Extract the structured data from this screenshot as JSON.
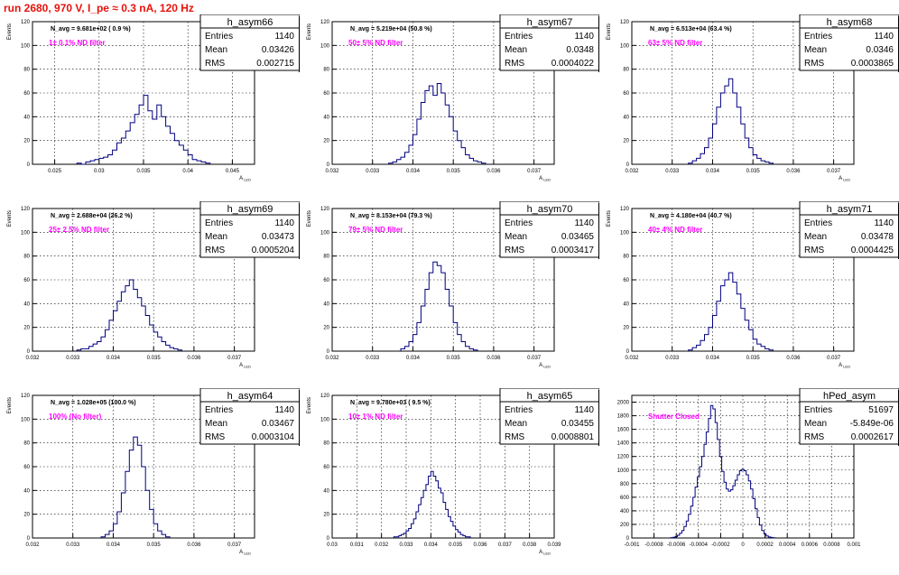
{
  "page": {
    "title": "run 2680,   970 V, I_pe ≈ 0.3 nA, 120 Hz"
  },
  "colors": {
    "title": "#e8120b",
    "annotation": "#ff00ff",
    "histogram": "#000080",
    "grid": "#000000"
  },
  "stats_labels": {
    "entries": "Entries",
    "mean": "Mean",
    "rms": "RMS"
  },
  "chart_data": [
    {
      "type": "histogram",
      "name": "h_asym66",
      "ylabel": "Events",
      "xlabel": "A_LED",
      "xlim": [
        0.0225,
        0.0475
      ],
      "ylim": [
        0,
        120
      ],
      "xticks": [
        "0.025",
        "0.03",
        "0.035",
        "0.04",
        "0.045"
      ],
      "yticks": [
        "0",
        "20",
        "40",
        "60",
        "80",
        "100",
        "120"
      ],
      "navg": "N_avg = 9.681e+02 ( 0.9 %)",
      "note": "1± 0.1% ND filter",
      "stats": {
        "entries": "1140",
        "mean": "0.03426",
        "rms": "0.002715"
      },
      "grid": true,
      "bins": {
        "start": 0.0275,
        "width": 0.0005,
        "counts": [
          1,
          0,
          2,
          3,
          4,
          5,
          6,
          8,
          12,
          18,
          22,
          28,
          35,
          42,
          50,
          58,
          45,
          38,
          50,
          40,
          32,
          26,
          20,
          16,
          12,
          8,
          4,
          3,
          2,
          1
        ]
      }
    },
    {
      "type": "histogram",
      "name": "h_asym67",
      "ylabel": "Events",
      "xlabel": "A_LED",
      "xlim": [
        0.032,
        0.0375
      ],
      "ylim": [
        0,
        120
      ],
      "xticks": [
        "0.032",
        "0.033",
        "0.034",
        "0.035",
        "0.036",
        "0.037"
      ],
      "yticks": [
        "0",
        "20",
        "40",
        "60",
        "80",
        "100",
        "120"
      ],
      "navg": "N_avg = 5.219e+04 (50.8 %)",
      "note": "50± 5% ND filter",
      "stats": {
        "entries": "1140",
        "mean": "0.0348",
        "rms": "0.0004022"
      },
      "grid": true,
      "bins": {
        "start": 0.0334,
        "width": 0.0001,
        "counts": [
          1,
          2,
          4,
          6,
          10,
          16,
          25,
          38,
          52,
          62,
          66,
          58,
          68,
          60,
          50,
          40,
          28,
          20,
          14,
          8,
          5,
          3,
          2,
          1
        ]
      }
    },
    {
      "type": "histogram",
      "name": "h_asym68",
      "ylabel": "Events",
      "xlabel": "A_LED",
      "xlim": [
        0.032,
        0.0375
      ],
      "ylim": [
        0,
        120
      ],
      "xticks": [
        "0.032",
        "0.033",
        "0.034",
        "0.035",
        "0.036",
        "0.037"
      ],
      "yticks": [
        "0",
        "20",
        "40",
        "60",
        "80",
        "100",
        "120"
      ],
      "navg": "N_avg = 6.513e+04 (63.4 %)",
      "note": "63± 5% ND filter",
      "stats": {
        "entries": "1140",
        "mean": "0.0346",
        "rms": "0.0003865"
      },
      "grid": true,
      "bins": {
        "start": 0.0334,
        "width": 0.0001,
        "counts": [
          1,
          3,
          5,
          9,
          14,
          22,
          34,
          48,
          60,
          66,
          72,
          60,
          48,
          34,
          22,
          14,
          8,
          5,
          3,
          2,
          1
        ]
      }
    },
    {
      "type": "histogram",
      "name": "h_asym69",
      "ylabel": "Events",
      "xlabel": "A_LED",
      "xlim": [
        0.032,
        0.0375
      ],
      "ylim": [
        0,
        120
      ],
      "xticks": [
        "0.032",
        "0.033",
        "0.034",
        "0.035",
        "0.036",
        "0.037"
      ],
      "yticks": [
        "0",
        "20",
        "40",
        "60",
        "80",
        "100",
        "120"
      ],
      "navg": "N_avg = 2.688e+04 (26.2 %)",
      "note": "25± 2.5% ND filter",
      "stats": {
        "entries": "1140",
        "mean": "0.03473",
        "rms": "0.0005204"
      },
      "grid": true,
      "bins": {
        "start": 0.0331,
        "width": 0.0001,
        "counts": [
          1,
          2,
          2,
          4,
          6,
          8,
          12,
          18,
          26,
          34,
          42,
          50,
          55,
          60,
          52,
          45,
          38,
          30,
          22,
          16,
          12,
          8,
          5,
          3,
          2,
          1
        ]
      }
    },
    {
      "type": "histogram",
      "name": "h_asym70",
      "ylabel": "Events",
      "xlabel": "A_LED",
      "xlim": [
        0.032,
        0.0375
      ],
      "ylim": [
        0,
        120
      ],
      "xticks": [
        "0.032",
        "0.033",
        "0.034",
        "0.035",
        "0.036",
        "0.037"
      ],
      "yticks": [
        "0",
        "20",
        "40",
        "60",
        "80",
        "100",
        "120"
      ],
      "navg": "N_avg = 8.153e+04 (79.3 %)",
      "note": "79± 5% ND filter",
      "stats": {
        "entries": "1140",
        "mean": "0.03465",
        "rms": "0.0003417"
      },
      "grid": true,
      "bins": {
        "start": 0.0337,
        "width": 0.0001,
        "counts": [
          2,
          4,
          8,
          14,
          24,
          38,
          52,
          66,
          75,
          72,
          66,
          52,
          38,
          24,
          14,
          8,
          4,
          2,
          1
        ]
      }
    },
    {
      "type": "histogram",
      "name": "h_asym71",
      "ylabel": "Events",
      "xlabel": "A_LED",
      "xlim": [
        0.032,
        0.0375
      ],
      "ylim": [
        0,
        120
      ],
      "xticks": [
        "0.032",
        "0.033",
        "0.034",
        "0.035",
        "0.036",
        "0.037"
      ],
      "yticks": [
        "0",
        "20",
        "40",
        "60",
        "80",
        "100",
        "120"
      ],
      "navg": "N_avg = 4.180e+04 (40.7 %)",
      "note": "40± 4% ND filter",
      "stats": {
        "entries": "1140",
        "mean": "0.03478",
        "rms": "0.0004425"
      },
      "grid": true,
      "bins": {
        "start": 0.0334,
        "width": 0.0001,
        "counts": [
          1,
          3,
          5,
          9,
          14,
          20,
          30,
          42,
          55,
          60,
          66,
          58,
          48,
          36,
          26,
          18,
          10,
          6,
          4,
          2,
          1
        ]
      }
    },
    {
      "type": "histogram",
      "name": "h_asym64",
      "ylabel": "Events",
      "xlabel": "A_LED",
      "xlim": [
        0.032,
        0.0375
      ],
      "ylim": [
        0,
        120
      ],
      "xticks": [
        "0.032",
        "0.033",
        "0.034",
        "0.035",
        "0.036",
        "0.037"
      ],
      "yticks": [
        "0",
        "20",
        "40",
        "60",
        "80",
        "100",
        "120"
      ],
      "navg": "N_avg = 1.028e+05 (100.0 %)",
      "note": "100% (No filter)",
      "stats": {
        "entries": "1140",
        "mean": "0.03467",
        "rms": "0.0003104"
      },
      "grid": true,
      "bins": {
        "start": 0.0337,
        "width": 0.0001,
        "counts": [
          1,
          3,
          6,
          12,
          22,
          38,
          56,
          74,
          85,
          78,
          60,
          40,
          24,
          12,
          6,
          3,
          1
        ]
      }
    },
    {
      "type": "histogram",
      "name": "h_asym65",
      "ylabel": "Events",
      "xlabel": "A_LED",
      "xlim": [
        0.03,
        0.039
      ],
      "ylim": [
        0,
        120
      ],
      "xticks": [
        "0.03",
        "0.031",
        "0.032",
        "0.033",
        "0.034",
        "0.035",
        "0.036",
        "0.037",
        "0.038",
        "0.039"
      ],
      "yticks": [
        "0",
        "20",
        "40",
        "60",
        "80",
        "100",
        "120"
      ],
      "navg": "N_avg = 9.780e+03 ( 9.5 %)",
      "note": "10± 1% ND filter",
      "stats": {
        "entries": "1140",
        "mean": "0.03455",
        "rms": "0.0008801"
      },
      "grid": true,
      "bins": {
        "start": 0.0325,
        "width": 0.0001,
        "counts": [
          1,
          1,
          2,
          3,
          4,
          6,
          8,
          12,
          16,
          22,
          28,
          34,
          40,
          45,
          52,
          56,
          52,
          48,
          42,
          38,
          30,
          24,
          18,
          14,
          10,
          7,
          5,
          3,
          2,
          1,
          1
        ]
      }
    },
    {
      "type": "histogram",
      "name": "hPed_asym",
      "ylabel": "",
      "xlabel": "",
      "xlim": [
        -0.001,
        0.001
      ],
      "ylim": [
        0,
        2100
      ],
      "xticks": [
        "-0.001",
        "-0.0008",
        "-0.0006",
        "-0.0004",
        "-0.0002",
        "0",
        "0.0002",
        "0.0004",
        "0.0006",
        "0.0008",
        "0.001"
      ],
      "yticks": [
        "0",
        "200",
        "400",
        "600",
        "800",
        "1000",
        "1200",
        "1400",
        "1600",
        "1800",
        "2000"
      ],
      "navg": "",
      "note": "Shutter Closed",
      "stats": {
        "entries": "51697",
        "mean": "-5.849e-06",
        "rms": "0.0002617"
      },
      "grid": true,
      "bins": {
        "start": -0.00065,
        "width": 2e-05,
        "counts": [
          5,
          10,
          20,
          40,
          70,
          110,
          170,
          250,
          350,
          470,
          600,
          750,
          900,
          1050,
          1200,
          1380,
          1560,
          1760,
          1950,
          1900,
          1700,
          1450,
          1200,
          980,
          820,
          720,
          690,
          710,
          770,
          850,
          930,
          990,
          1010,
          990,
          930,
          840,
          720,
          580,
          430,
          300,
          190,
          110,
          60,
          30,
          15,
          8,
          4
        ]
      }
    }
  ]
}
